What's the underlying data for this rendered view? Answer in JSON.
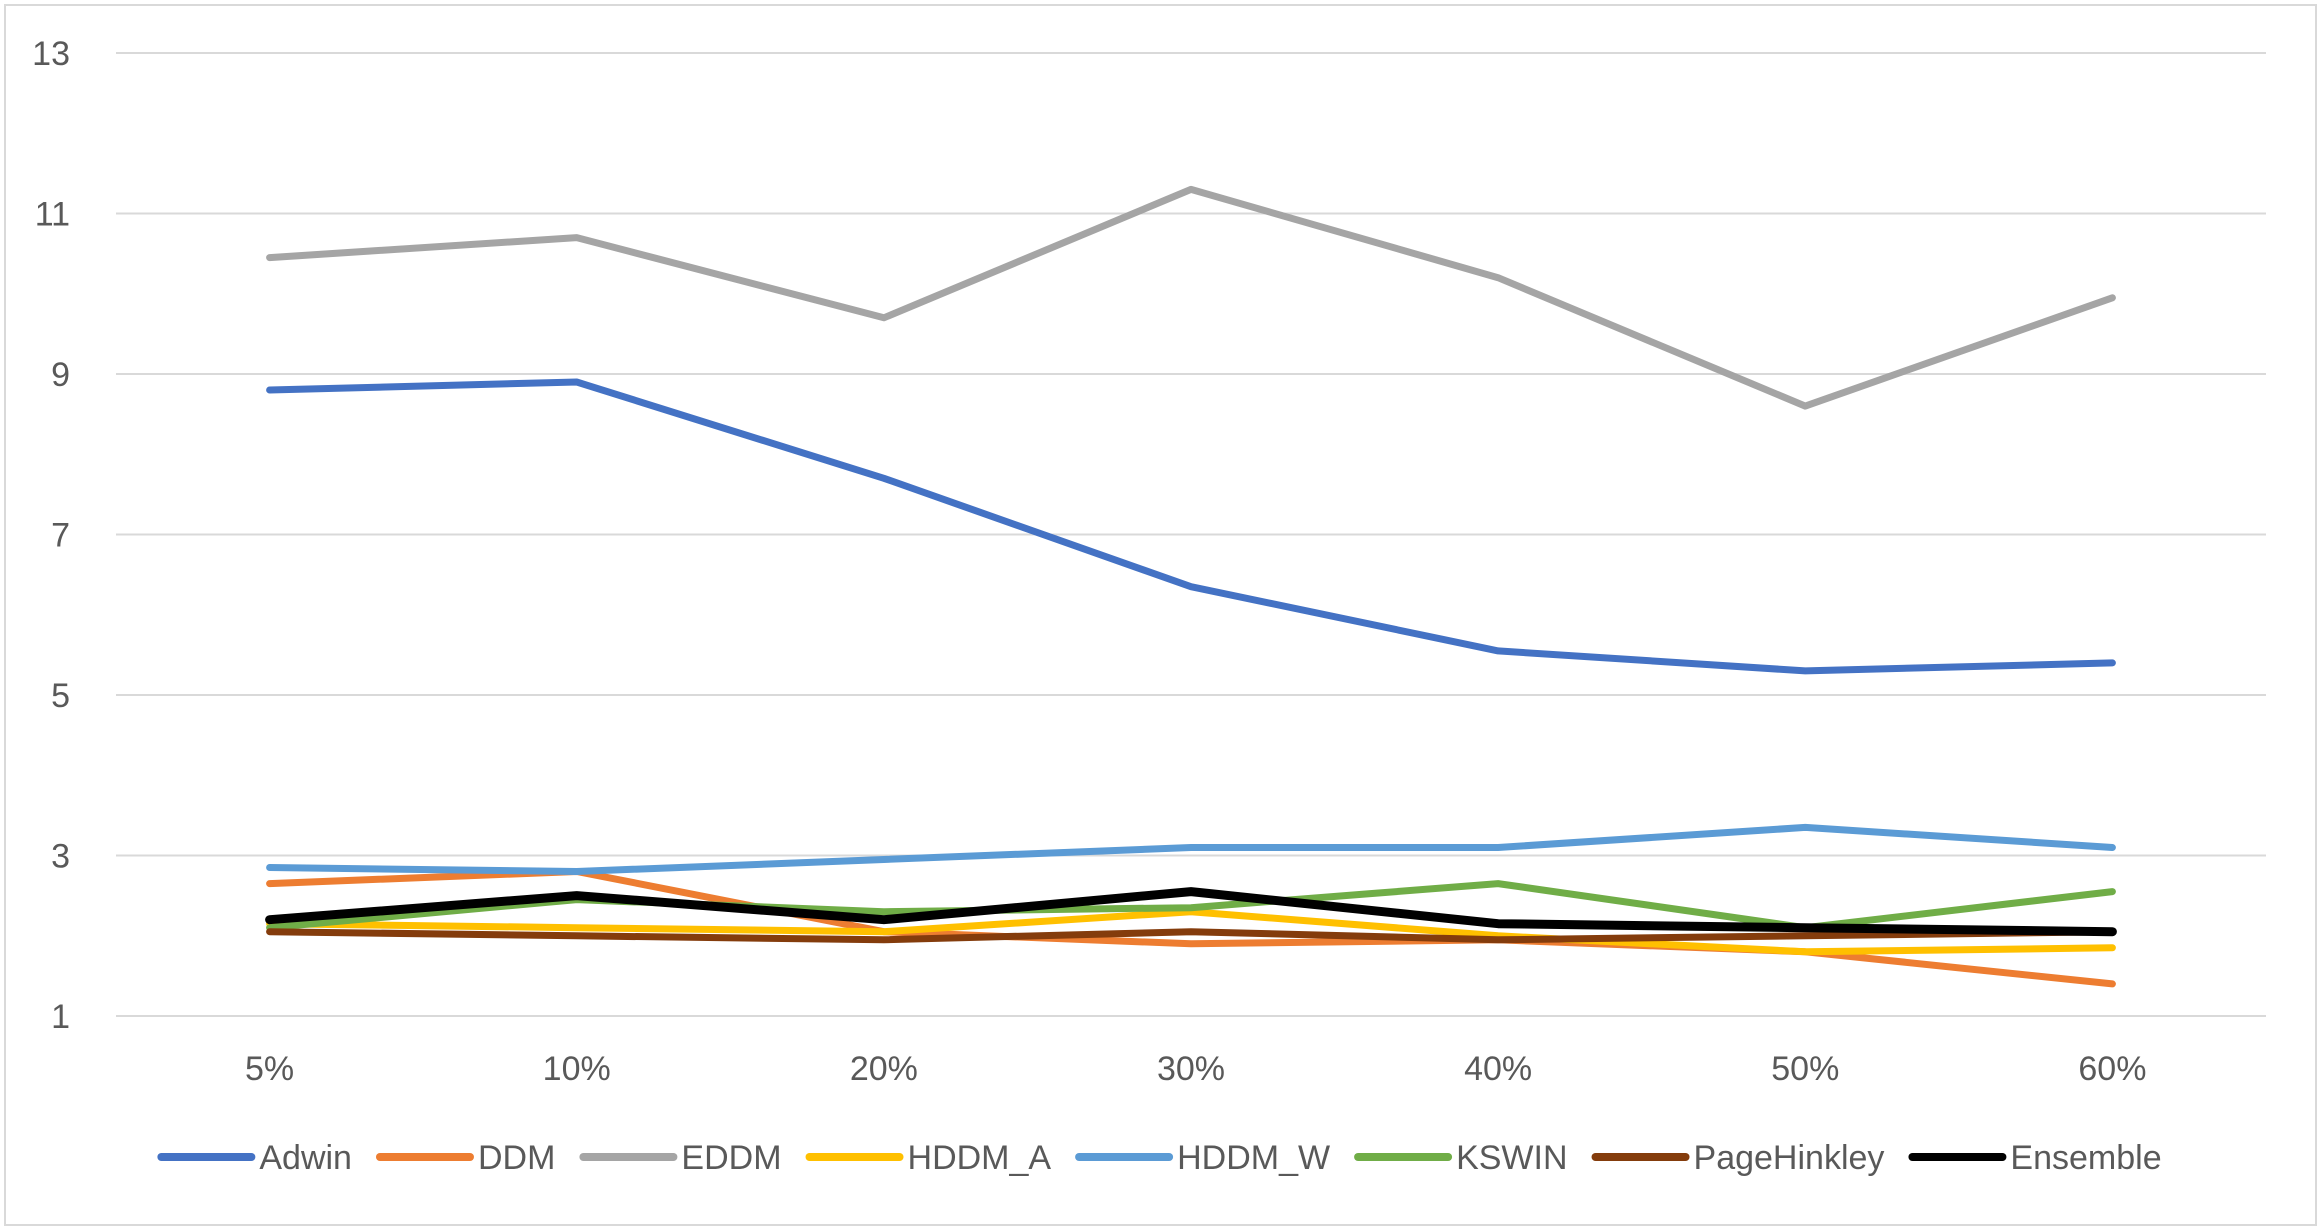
{
  "chart_data": {
    "type": "line",
    "title": "",
    "xlabel": "",
    "ylabel": "",
    "categories": [
      "5%",
      "10%",
      "20%",
      "30%",
      "40%",
      "50%",
      "60%"
    ],
    "ylim": [
      1,
      13
    ],
    "yticks": [
      1,
      3,
      5,
      7,
      9,
      11,
      13
    ],
    "grid": "horizontal",
    "legend_position": "bottom",
    "series": [
      {
        "name": "Adwin",
        "color": "#4472C4",
        "values": [
          8.8,
          8.9,
          7.7,
          6.35,
          5.55,
          5.3,
          5.4
        ]
      },
      {
        "name": "DDM",
        "color": "#ED7D31",
        "values": [
          2.65,
          2.8,
          2.05,
          1.9,
          1.95,
          1.8,
          1.4
        ]
      },
      {
        "name": "EDDM",
        "color": "#A5A5A5",
        "values": [
          10.45,
          10.7,
          9.7,
          11.3,
          10.2,
          8.6,
          9.95
        ]
      },
      {
        "name": "HDDM_A",
        "color": "#FFC000",
        "values": [
          2.15,
          2.1,
          2.05,
          2.3,
          2.0,
          1.8,
          1.85
        ]
      },
      {
        "name": "HDDM_W",
        "color": "#5B9BD5",
        "values": [
          2.85,
          2.8,
          2.95,
          3.1,
          3.1,
          3.35,
          3.1
        ]
      },
      {
        "name": "KSWIN",
        "color": "#70AD47",
        "values": [
          2.1,
          2.45,
          2.3,
          2.35,
          2.65,
          2.1,
          2.55
        ]
      },
      {
        "name": "PageHinkley",
        "color": "#843C0C",
        "values": [
          2.05,
          2.0,
          1.95,
          2.05,
          1.95,
          2.0,
          2.05
        ]
      },
      {
        "name": "Ensemble",
        "color": "#000000",
        "values": [
          2.2,
          2.5,
          2.2,
          2.55,
          2.15,
          2.1,
          2.05
        ]
      }
    ]
  }
}
